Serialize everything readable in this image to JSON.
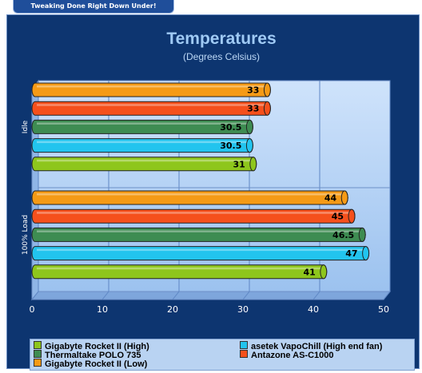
{
  "banner": "Tweaking Done Right Down Under!",
  "chart_data": {
    "type": "bar",
    "orientation": "horizontal",
    "title": "Temperatures",
    "subtitle": "(Degrees Celsius)",
    "categories": [
      "Idle",
      "100% Load"
    ],
    "xlim": [
      0,
      50
    ],
    "xticks": [
      0,
      10,
      20,
      30,
      40,
      50
    ],
    "grid": true,
    "legend_position": "bottom",
    "series": [
      {
        "name": "Gigabyte Rocket II (Low)",
        "color": "#f59a16",
        "values": [
          33,
          44
        ]
      },
      {
        "name": "Antazone AS-C1000",
        "color": "#f5501c",
        "values": [
          33,
          45
        ]
      },
      {
        "name": "Thermaltake POLO 735",
        "color": "#3e8c52",
        "values": [
          30.5,
          46.5
        ]
      },
      {
        "name": "asetek VapoChill (High end fan)",
        "color": "#22c4ee",
        "values": [
          30.5,
          47
        ]
      },
      {
        "name": "Gigabyte Rocket II (High)",
        "color": "#8ec61c",
        "values": [
          31,
          41
        ]
      }
    ],
    "value_labels": [
      [
        "33",
        "33",
        "30.5",
        "30.5",
        "31"
      ],
      [
        "44",
        "45",
        "46.5",
        "47",
        "41"
      ]
    ],
    "legend": [
      {
        "name": "Gigabyte Rocket II (High)",
        "color": "#8ec61c"
      },
      {
        "name": "asetek VapoChill (High end fan)",
        "color": "#22c4ee"
      },
      {
        "name": "Thermaltake POLO 735",
        "color": "#3e8c52"
      },
      {
        "name": "Antazone AS-C1000",
        "color": "#f5501c"
      },
      {
        "name": "Gigabyte Rocket II (Low)",
        "color": "#f59a16"
      }
    ]
  }
}
